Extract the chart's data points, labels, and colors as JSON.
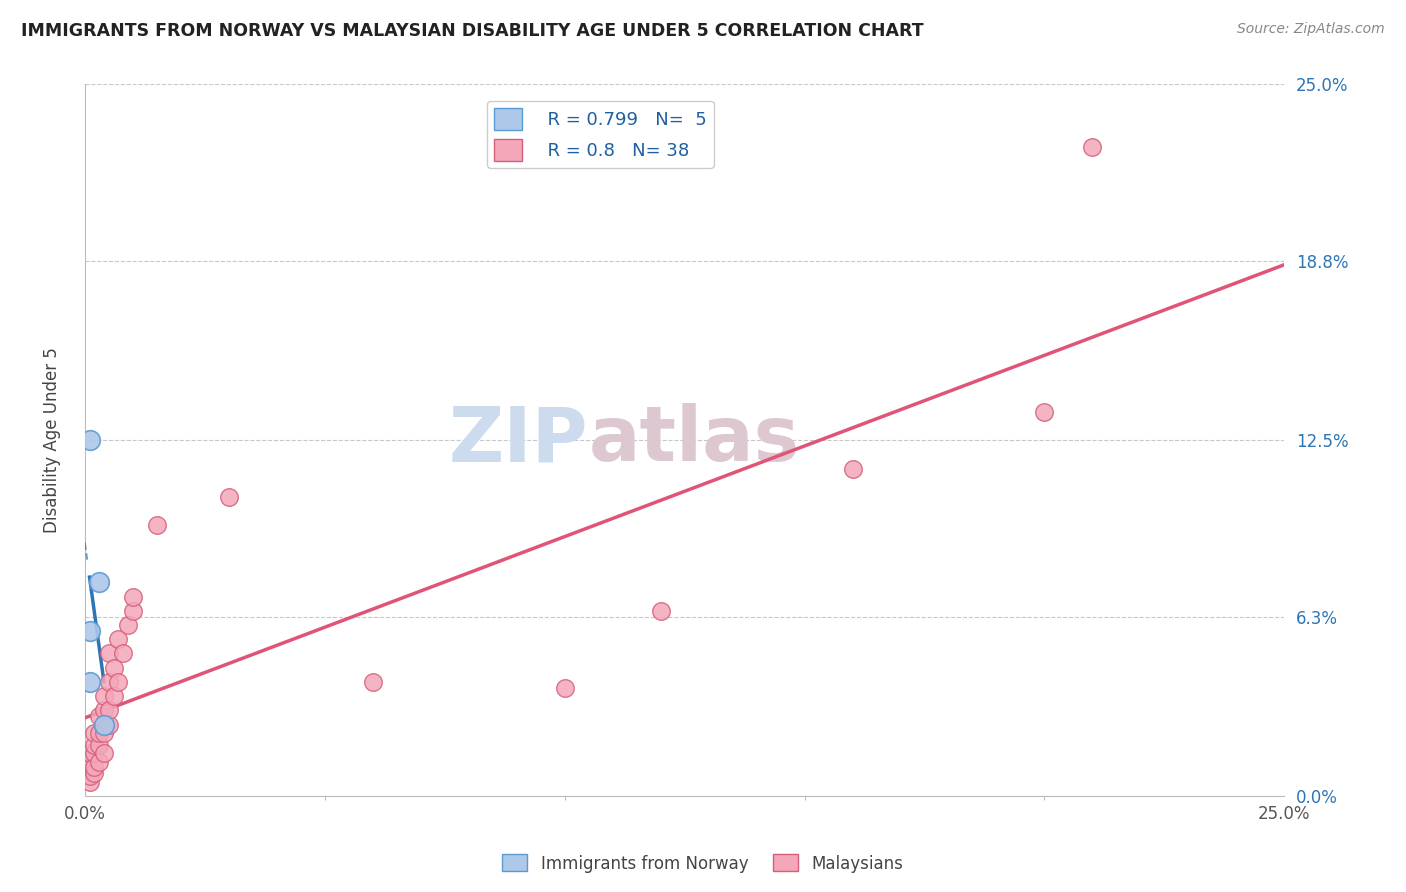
{
  "title": "IMMIGRANTS FROM NORWAY VS MALAYSIAN DISABILITY AGE UNDER 5 CORRELATION CHART",
  "source": "Source: ZipAtlas.com",
  "ylabel": "Disability Age Under 5",
  "xlim": [
    0,
    0.25
  ],
  "ylim": [
    0,
    0.25
  ],
  "norway_color": "#adc8e8",
  "norway_edge_color": "#5b9bd5",
  "norway_line_color": "#2e75b6",
  "malaysia_color": "#f4a7b9",
  "malaysia_edge_color": "#d45f7a",
  "malaysia_line_color": "#e05575",
  "norway_R": 0.799,
  "norway_N": 5,
  "malaysia_R": 0.8,
  "malaysia_N": 38,
  "background_color": "#ffffff",
  "grid_color": "#c8c8c8",
  "norway_points_x": [
    0.001,
    0.001,
    0.001,
    0.003,
    0.004
  ],
  "norway_points_y": [
    0.125,
    0.058,
    0.04,
    0.075,
    0.025
  ],
  "malaysia_points_x": [
    0.001,
    0.001,
    0.001,
    0.001,
    0.001,
    0.002,
    0.002,
    0.002,
    0.002,
    0.002,
    0.003,
    0.003,
    0.003,
    0.003,
    0.004,
    0.004,
    0.004,
    0.004,
    0.005,
    0.005,
    0.005,
    0.005,
    0.006,
    0.006,
    0.007,
    0.007,
    0.008,
    0.009,
    0.01,
    0.01,
    0.015,
    0.03,
    0.06,
    0.1,
    0.12,
    0.16,
    0.2,
    0.21
  ],
  "malaysia_points_y": [
    0.005,
    0.007,
    0.01,
    0.012,
    0.015,
    0.008,
    0.01,
    0.015,
    0.018,
    0.022,
    0.012,
    0.018,
    0.022,
    0.028,
    0.015,
    0.022,
    0.03,
    0.035,
    0.025,
    0.03,
    0.04,
    0.05,
    0.035,
    0.045,
    0.04,
    0.055,
    0.05,
    0.06,
    0.065,
    0.07,
    0.095,
    0.105,
    0.04,
    0.038,
    0.065,
    0.115,
    0.135,
    0.228
  ],
  "yticks": [
    0.0,
    0.063,
    0.125,
    0.188,
    0.25
  ],
  "ytick_labels": [
    "0.0%",
    "6.3%",
    "12.5%",
    "18.8%",
    "25.0%"
  ]
}
